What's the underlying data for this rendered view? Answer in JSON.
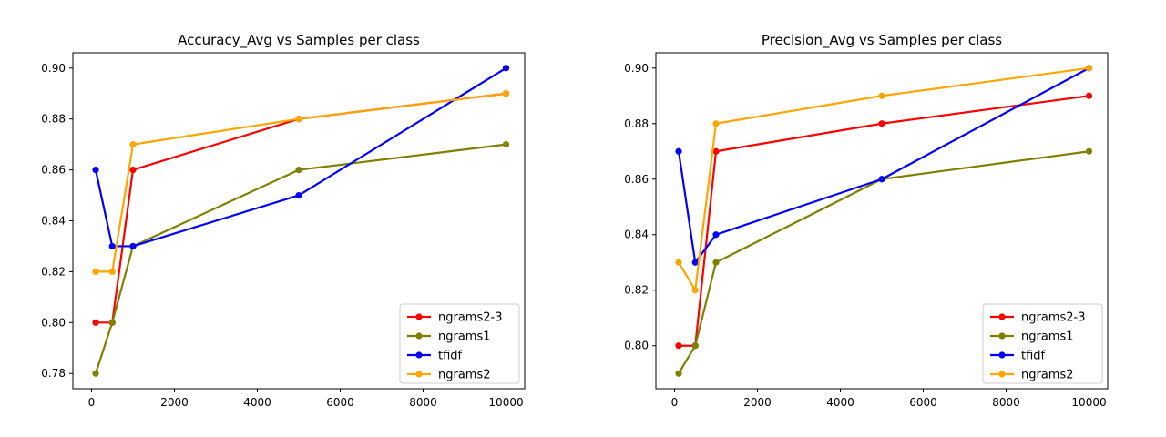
{
  "chart_data": [
    {
      "type": "line",
      "title": "Accuracy_Avg vs Samples per class",
      "xlabel": "",
      "ylabel": "",
      "xlim": [
        -450,
        10450
      ],
      "ylim": [
        0.774,
        0.906
      ],
      "xticks": [
        0,
        2000,
        4000,
        6000,
        8000,
        10000
      ],
      "xtick_labels": [
        "0",
        "2000",
        "4000",
        "6000",
        "8000",
        "10000"
      ],
      "yticks": [
        0.78,
        0.8,
        0.82,
        0.84,
        0.86,
        0.88,
        0.9
      ],
      "ytick_labels": [
        "0.78",
        "0.80",
        "0.82",
        "0.84",
        "0.86",
        "0.88",
        "0.90"
      ],
      "grid": false,
      "legend_position": "lower-right",
      "x": [
        100,
        500,
        1000,
        5000,
        10000
      ],
      "series": [
        {
          "name": "ngrams2-3",
          "color": "#ff0000",
          "values": [
            0.8,
            0.8,
            0.86,
            0.88,
            0.89
          ]
        },
        {
          "name": "ngrams1",
          "color": "#808000",
          "values": [
            0.78,
            0.8,
            0.83,
            0.86,
            0.87
          ]
        },
        {
          "name": "tfidf",
          "color": "#0000ff",
          "values": [
            0.86,
            0.83,
            0.83,
            0.85,
            0.9
          ]
        },
        {
          "name": "ngrams2",
          "color": "#ffa500",
          "values": [
            0.82,
            0.82,
            0.87,
            0.88,
            0.89
          ]
        }
      ]
    },
    {
      "type": "line",
      "title": "Precision_Avg vs Samples per class",
      "xlabel": "",
      "ylabel": "",
      "xlim": [
        -450,
        10450
      ],
      "ylim": [
        0.7845,
        0.9055
      ],
      "xticks": [
        0,
        2000,
        4000,
        6000,
        8000,
        10000
      ],
      "xtick_labels": [
        "0",
        "2000",
        "4000",
        "6000",
        "8000",
        "10000"
      ],
      "yticks": [
        0.8,
        0.82,
        0.84,
        0.86,
        0.88,
        0.9
      ],
      "ytick_labels": [
        "0.80",
        "0.82",
        "0.84",
        "0.86",
        "0.88",
        "0.90"
      ],
      "grid": false,
      "legend_position": "lower-right",
      "x": [
        100,
        500,
        1000,
        5000,
        10000
      ],
      "series": [
        {
          "name": "ngrams2-3",
          "color": "#ff0000",
          "values": [
            0.8,
            0.8,
            0.87,
            0.88,
            0.89
          ]
        },
        {
          "name": "ngrams1",
          "color": "#808000",
          "values": [
            0.79,
            0.8,
            0.83,
            0.86,
            0.87
          ]
        },
        {
          "name": "tfidf",
          "color": "#0000ff",
          "values": [
            0.87,
            0.83,
            0.84,
            0.86,
            0.9
          ]
        },
        {
          "name": "ngrams2",
          "color": "#ffa500",
          "values": [
            0.83,
            0.82,
            0.88,
            0.89,
            0.9
          ]
        }
      ]
    }
  ]
}
